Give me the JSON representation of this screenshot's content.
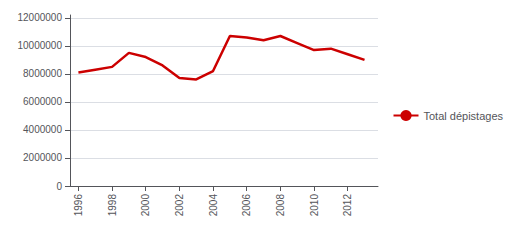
{
  "chart_data": {
    "type": "line",
    "x": [
      1996,
      1997,
      1998,
      1999,
      2000,
      2001,
      2002,
      2003,
      2004,
      2005,
      2006,
      2007,
      2008,
      2009,
      2010,
      2011,
      2012,
      2013
    ],
    "series": [
      {
        "name": "Total dépistages",
        "color": "#cc0000",
        "values": [
          8100000,
          8300000,
          8500000,
          9500000,
          9200000,
          8600000,
          7700000,
          7600000,
          8200000,
          10700000,
          10600000,
          10400000,
          10700000,
          10200000,
          9700000,
          9800000,
          9400000,
          9000000
        ]
      }
    ],
    "xlim": [
      1995.5,
      2013.8
    ],
    "xticks": [
      1996,
      1998,
      2000,
      2002,
      2004,
      2006,
      2008,
      2010,
      2012
    ],
    "ylim": [
      0,
      12200000
    ],
    "yticks": [
      0,
      2000000,
      4000000,
      6000000,
      8000000,
      10000000,
      12000000
    ],
    "grid": true,
    "legend": "right"
  }
}
